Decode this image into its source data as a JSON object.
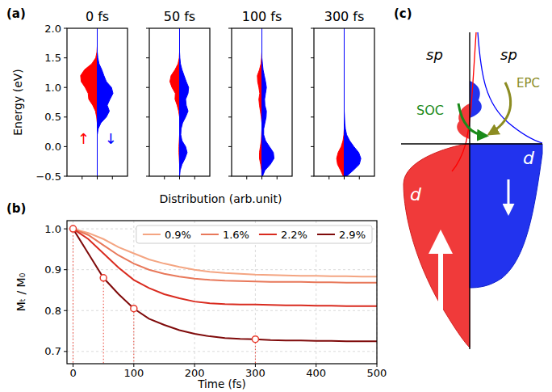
{
  "chart_data": [
    {
      "type": "area",
      "orientation": "horizontal",
      "label": "(a)",
      "title": "0 fs",
      "ylabel": "Energy (eV)",
      "xlabel": "Distribution (arb.unit)",
      "annotations": [
        "↑",
        "↓"
      ],
      "tick_labels": "y",
      "xlim": [
        -1,
        1
      ],
      "xticks": [
        -0.5,
        0,
        0.5
      ],
      "ylim": [
        -0.5,
        2.0
      ],
      "yticks": [
        {
          "value": -0.5,
          "label": "−0.5"
        },
        {
          "value": 0,
          "label": "0.0"
        },
        {
          "value": 0.5,
          "label": "0.5"
        },
        {
          "value": 1,
          "label": "1.0"
        },
        {
          "value": 1.5,
          "label": "1.5"
        },
        {
          "value": 2,
          "label": "2.0"
        }
      ],
      "y": [
        -0.5,
        -0.4,
        -0.3,
        -0.2,
        -0.1,
        0.0,
        0.1,
        0.2,
        0.3,
        0.4,
        0.5,
        0.6,
        0.7,
        0.8,
        0.9,
        1.0,
        1.1,
        1.2,
        1.3,
        1.4,
        1.5,
        1.6,
        1.7,
        1.8,
        1.9,
        2.0
      ],
      "series": [
        {
          "color": "#ff0000",
          "values": [
            0,
            0,
            0,
            0,
            0,
            0,
            0,
            0,
            0,
            0,
            -0.02,
            -0.06,
            -0.15,
            -0.28,
            -0.3,
            -0.4,
            -0.53,
            -0.55,
            -0.42,
            -0.18,
            -0.05,
            -0.01,
            0,
            0,
            0,
            0
          ]
        },
        {
          "color": "#0000ff",
          "values": [
            0,
            0,
            0,
            0,
            0,
            0,
            0,
            0,
            0.03,
            0.12,
            0.3,
            0.4,
            0.33,
            0.42,
            0.52,
            0.47,
            0.3,
            0.22,
            0.15,
            0.06,
            0.02,
            0,
            0,
            0,
            0,
            0
          ]
        }
      ]
    },
    {
      "type": "area",
      "orientation": "horizontal",
      "title": "50 fs",
      "tick_labels": false,
      "xlim": [
        -1,
        1
      ],
      "xticks": [
        -0.5,
        0,
        0.5
      ],
      "ylim": [
        -0.5,
        2.0
      ],
      "yticks": [
        -0.5,
        0,
        0.5,
        1,
        1.5,
        2
      ],
      "y": [
        -0.5,
        -0.4,
        -0.3,
        -0.2,
        -0.1,
        0.0,
        0.1,
        0.2,
        0.3,
        0.4,
        0.5,
        0.6,
        0.7,
        0.8,
        0.9,
        1.0,
        1.1,
        1.2,
        1.3,
        1.4,
        1.5,
        1.6,
        1.7,
        1.8,
        1.9,
        2.0
      ],
      "series": [
        {
          "color": "#ff0000",
          "values": [
            0,
            0,
            0,
            -0.01,
            -0.02,
            -0.02,
            -0.01,
            0,
            0,
            0,
            0,
            -0.03,
            -0.08,
            -0.15,
            -0.14,
            -0.25,
            -0.32,
            -0.28,
            -0.15,
            -0.05,
            -0.01,
            0,
            0,
            0,
            0,
            0
          ]
        },
        {
          "color": "#0000ff",
          "values": [
            0,
            0.02,
            0.08,
            0.18,
            0.25,
            0.2,
            0.08,
            0.04,
            0.05,
            0.1,
            0.2,
            0.28,
            0.22,
            0.2,
            0.28,
            0.3,
            0.22,
            0.15,
            0.08,
            0.03,
            0.01,
            0,
            0,
            0,
            0,
            0
          ]
        }
      ]
    },
    {
      "type": "area",
      "orientation": "horizontal",
      "title": "100 fs",
      "tick_labels": false,
      "xlim": [
        -1,
        1
      ],
      "xticks": [
        -0.5,
        0,
        0.5
      ],
      "ylim": [
        -0.5,
        2.0
      ],
      "yticks": [
        -0.5,
        0,
        0.5,
        1,
        1.5,
        2
      ],
      "y": [
        -0.5,
        -0.4,
        -0.3,
        -0.2,
        -0.1,
        0.0,
        0.1,
        0.2,
        0.3,
        0.4,
        0.5,
        0.6,
        0.7,
        0.8,
        0.9,
        1.0,
        1.1,
        1.2,
        1.3,
        1.4,
        1.5,
        1.6,
        1.7,
        1.8,
        1.9,
        2.0
      ],
      "series": [
        {
          "color": "#ff0000",
          "values": [
            0,
            -0.01,
            -0.04,
            -0.08,
            -0.08,
            -0.05,
            -0.02,
            -0.01,
            0,
            0,
            -0.02,
            -0.05,
            -0.08,
            -0.1,
            -0.07,
            -0.1,
            -0.14,
            -0.15,
            -0.08,
            -0.03,
            -0.01,
            0,
            0,
            0,
            0,
            0
          ]
        },
        {
          "color": "#0000ff",
          "values": [
            0.02,
            0.1,
            0.28,
            0.4,
            0.38,
            0.25,
            0.12,
            0.06,
            0.06,
            0.1,
            0.14,
            0.15,
            0.1,
            0.09,
            0.12,
            0.15,
            0.12,
            0.08,
            0.04,
            0.02,
            0,
            0,
            0,
            0,
            0,
            0
          ]
        }
      ]
    },
    {
      "type": "area",
      "orientation": "horizontal",
      "title": "300 fs",
      "tick_labels": false,
      "xlim": [
        -1,
        1
      ],
      "xticks": [
        -0.5,
        0,
        0.5
      ],
      "ylim": [
        -0.5,
        2.0
      ],
      "yticks": [
        -0.5,
        0,
        0.5,
        1,
        1.5,
        2
      ],
      "y": [
        -0.5,
        -0.4,
        -0.3,
        -0.2,
        -0.1,
        0.0,
        0.1,
        0.2,
        0.3,
        0.4,
        0.5,
        0.6,
        0.7,
        0.8,
        0.9,
        1.0,
        1.1,
        1.2,
        1.3,
        1.4,
        1.5,
        1.6,
        1.7,
        1.8,
        1.9,
        2.0
      ],
      "series": [
        {
          "color": "#ff0000",
          "values": [
            -0.03,
            -0.12,
            -0.22,
            -0.25,
            -0.2,
            -0.1,
            -0.04,
            -0.01,
            0,
            0,
            0,
            0,
            0,
            0,
            0,
            0,
            0,
            0,
            0,
            0,
            0,
            0,
            0,
            0,
            0,
            0
          ]
        },
        {
          "color": "#0000ff",
          "values": [
            0.08,
            0.3,
            0.5,
            0.55,
            0.48,
            0.32,
            0.18,
            0.08,
            0.04,
            0.02,
            0.01,
            0,
            0,
            0,
            0,
            0,
            0,
            0,
            0,
            0,
            0,
            0,
            0,
            0,
            0,
            0
          ]
        }
      ]
    },
    {
      "type": "line",
      "label": "(b)",
      "xlabel": "Time (fs)",
      "ylabel": "Mₜ / M₀",
      "grid": true,
      "legend": "upper right",
      "xlim": [
        -10,
        500
      ],
      "xticks": [
        0,
        100,
        200,
        300,
        400,
        500
      ],
      "ylim": [
        0.67,
        1.02
      ],
      "yticks": [
        {
          "value": 0.7,
          "label": "0.7"
        },
        {
          "value": 0.8,
          "label": "0.8"
        },
        {
          "value": 0.9,
          "label": "0.9"
        },
        {
          "value": 1.0,
          "label": "1.0"
        }
      ],
      "x": [
        0,
        25,
        50,
        75,
        100,
        125,
        150,
        175,
        200,
        225,
        250,
        275,
        300,
        325,
        350,
        375,
        400,
        425,
        450,
        475,
        500
      ],
      "series": [
        {
          "name": "0.9%",
          "color": "#f4a582",
          "values": [
            1.0,
            0.99,
            0.975,
            0.955,
            0.94,
            0.925,
            0.915,
            0.907,
            0.9,
            0.895,
            0.892,
            0.89,
            0.888,
            0.887,
            0.886,
            0.885,
            0.885,
            0.884,
            0.884,
            0.883,
            0.883
          ]
        },
        {
          "name": "1.6%",
          "color": "#e8785a",
          "values": [
            1.0,
            0.985,
            0.96,
            0.935,
            0.915,
            0.9,
            0.89,
            0.883,
            0.878,
            0.875,
            0.873,
            0.872,
            0.871,
            0.87,
            0.87,
            0.87,
            0.869,
            0.869,
            0.868,
            0.868,
            0.868
          ]
        },
        {
          "name": "2.2%",
          "color": "#d92b1f",
          "values": [
            1.0,
            0.975,
            0.94,
            0.905,
            0.875,
            0.855,
            0.84,
            0.83,
            0.822,
            0.818,
            0.816,
            0.815,
            0.815,
            0.814,
            0.813,
            0.813,
            0.812,
            0.812,
            0.811,
            0.811,
            0.811
          ]
        },
        {
          "name": "2.9%",
          "color": "#7f0a0a",
          "values": [
            1.0,
            0.94,
            0.88,
            0.84,
            0.805,
            0.78,
            0.765,
            0.752,
            0.743,
            0.737,
            0.733,
            0.731,
            0.73,
            0.728,
            0.727,
            0.727,
            0.726,
            0.726,
            0.725,
            0.725,
            0.725
          ]
        },
        {
          "type": "scatter",
          "marker": "circle",
          "line_style": "dotted",
          "color": "#e8392b",
          "x": [
            0,
            50,
            100,
            300
          ],
          "values": [
            1.0,
            0.88,
            0.805,
            0.73
          ]
        }
      ]
    }
  ],
  "diagram": {
    "label": "(c)",
    "sp_up": "sp",
    "sp_down": "sp",
    "d_up": "d",
    "d_down": "d",
    "soc": "SOC",
    "epc": "EPC"
  }
}
